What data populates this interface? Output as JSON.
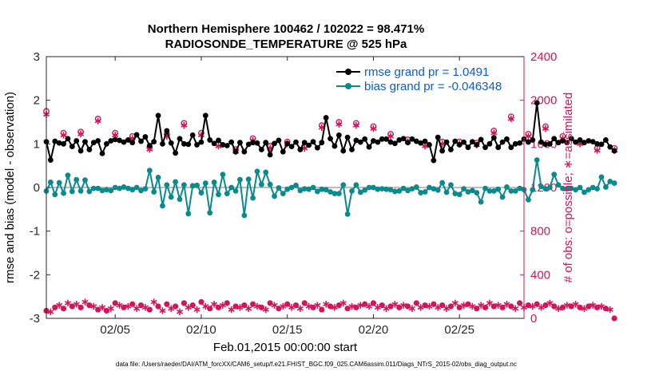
{
  "chart_data": {
    "type": "line",
    "title_line1": "Northern Hemisphere 100462 / 102022 = 98.471%",
    "title_line2": "RADIOSONDE_TEMPERATURE @ 525 hPa",
    "xlabel": "Feb.01,2015 00:00:00 start",
    "ylabel_left": "rmse and bias (model - observation)",
    "ylabel_right": "# of obs: o=possible; ∗=assimilated",
    "footer": "data file: /Users/raeder/DAI/ATM_forcXX/CAM6_setup/f.e21.FHIST_BGC.f09_025.CAM6assim.011/Diags_NTrS_2015-02/obs_diag_output.nc",
    "xlim": [
      1,
      28.75
    ],
    "ylim_left": [
      -3,
      3
    ],
    "ylim_right": [
      0,
      2400
    ],
    "x_tick_values": [
      5,
      10,
      15,
      20,
      25
    ],
    "x_tick_labels": [
      "02/05",
      "02/10",
      "02/15",
      "02/20",
      "02/25"
    ],
    "left_ticks": [
      -3,
      -2,
      -1,
      0,
      1,
      2,
      3
    ],
    "left_tick_labels": [
      "-3",
      "-2",
      "-1",
      "0",
      "1",
      "2",
      "3"
    ],
    "right_ticks": [
      0,
      400,
      800,
      1200,
      1600,
      2000,
      2400
    ],
    "right_tick_labels": [
      "0",
      "400",
      "800",
      "1200",
      "1600",
      "2000",
      "2400"
    ],
    "zero_line": 0,
    "x_start": 1,
    "x_step": 0.25,
    "colors": {
      "rmse": "#000000",
      "bias": "#0a8a8a",
      "obs": "#d4145a",
      "right_axis": "#d4145a",
      "zero": "#bdbdbd",
      "legend_text": "#0b5bd3"
    },
    "legend": [
      {
        "name": "rmse",
        "label": "rmse grand pr = 1.0491"
      },
      {
        "name": "bias",
        "label": "bias grand pr = -0.046348"
      }
    ],
    "series": [
      {
        "name": "rmse",
        "values": [
          1.05,
          0.63,
          1.06,
          1.02,
          1.0,
          1.12,
          0.94,
          1.07,
          0.84,
          1.05,
          0.87,
          1.03,
          1.07,
          0.78,
          1.0,
          1.07,
          1.1,
          1.08,
          1.04,
          1.09,
          1.03,
          1.21,
          1.06,
          1.16,
          0.96,
          1.05,
          1.65,
          1.0,
          1.3,
          1.02,
          0.79,
          1.12,
          1.0,
          0.99,
          1.2,
          0.98,
          1.04,
          1.65,
          1.09,
          1.01,
          1.08,
          0.98,
          0.96,
          1.04,
          0.82,
          1.03,
          0.82,
          0.99,
          1.03,
          1.02,
          0.87,
          1.03,
          0.75,
          1.01,
          1.08,
          0.82,
          1.01,
          0.94,
          1.04,
          0.87,
          1.03,
          0.97,
          1.05,
          0.91,
          1.03,
          1.6,
          1.12,
          0.95,
          1.2,
          0.84,
          1.15,
          0.87,
          1.08,
          1.04,
          1.11,
          0.93,
          1.07,
          1.04,
          1.11,
          1.11,
          1.04,
          1.01,
          1.09,
          1.12,
          1.03,
          1.11,
          1.06,
          1.02,
          1.06,
          0.98,
          0.62,
          1.15,
          0.84,
          1.04,
          0.87,
          1.06,
          0.98,
          1.04,
          0.92,
          1.05,
          0.98,
          1.1,
          0.92,
          1.0,
          1.14,
          0.92,
          1.04,
          1.11,
          0.92,
          1.0,
          1.02,
          1.11,
          1.04,
          1.09,
          1.94,
          1.04,
          0.99,
          1.0,
          1.12,
          1.03,
          1.07,
          1.03,
          1.12,
          1.04,
          1.09,
          1.03,
          1.07,
          1.05,
          1.0,
          0.99,
          1.09,
          0.93,
          0.84
        ]
      },
      {
        "name": "bias",
        "values": [
          -0.08,
          0.12,
          -0.16,
          0.11,
          -0.13,
          0.28,
          -0.09,
          0.18,
          -0.08,
          0.17,
          -0.09,
          -0.02,
          -0.02,
          -0.07,
          -0.05,
          -0.07,
          0.0,
          -0.02,
          0.01,
          -0.02,
          -0.05,
          0.0,
          -0.07,
          -0.03,
          0.39,
          -0.1,
          0.23,
          -0.42,
          0.06,
          -0.22,
          0.13,
          -0.27,
          0.06,
          -0.6,
          0.04,
          0.05,
          -0.12,
          0.1,
          -0.58,
          0.12,
          -0.16,
          0.3,
          -0.14,
          0.0,
          -0.08,
          0.18,
          -0.64,
          0.19,
          -0.24,
          0.37,
          0.07,
          0.35,
          0.07,
          -0.2,
          -0.01,
          -0.14,
          -0.04,
          0.0,
          0.05,
          -0.07,
          -0.03,
          -0.04,
          0.0,
          -0.09,
          -0.04,
          -0.05,
          -0.1,
          -0.14,
          -0.14,
          0.06,
          -0.61,
          -0.08,
          0.06,
          -0.11,
          -0.06,
          0.0,
          0.0,
          -0.04,
          -0.03,
          -0.04,
          -0.05,
          -0.09,
          -0.08,
          -0.02,
          -0.07,
          -0.03,
          0.01,
          -0.12,
          -0.1,
          0.0,
          -0.03,
          -0.06,
          0.11,
          -0.11,
          0.06,
          -0.14,
          -0.16,
          -0.03,
          -0.1,
          -0.07,
          -0.12,
          -0.33,
          -0.02,
          -0.08,
          -0.08,
          -0.04,
          -0.22,
          0.01,
          -0.08,
          -0.08,
          -0.02,
          -0.05,
          -0.28,
          -0.05,
          0.63,
          0.02,
          -0.03,
          0.0,
          0.3,
          0.06,
          -0.02,
          -0.03,
          -0.02,
          -0.05,
          0.0,
          -0.11,
          -0.05,
          0.0,
          -0.03,
          0.24,
          0.01,
          0.14,
          0.1
        ]
      },
      {
        "name": "obs_possible",
        "values": [
          1900,
          170,
          1680,
          1620,
          1700,
          1580,
          1660,
          1620,
          1710,
          1630,
          1650,
          1610,
          1830,
          1820,
          1660,
          1640,
          1700,
          1750,
          1600,
          1740,
          1670,
          1760,
          1790,
          1710,
          1570,
          1750,
          1780,
          1520,
          1690,
          1540,
          1650,
          1620,
          1790,
          1740,
          1800,
          1660,
          1700,
          1820,
          1670,
          1800,
          1600,
          1720,
          1610,
          1690,
          1550,
          1690,
          1610,
          1580,
          1650,
          1700,
          1640,
          1750,
          1580,
          1720,
          1600,
          1660,
          1620,
          1680,
          1780,
          1650,
          1580,
          1720,
          1790,
          1620,
          1770,
          1590,
          1750,
          1670,
          1800,
          1700,
          1820,
          1660,
          1790,
          1720,
          1640,
          1670,
          1760,
          1720,
          1580,
          1730,
          1690,
          1600,
          1680,
          1630,
          1640,
          1560,
          1690,
          1740,
          1600,
          1710,
          1640,
          1700,
          1620,
          1720,
          1680,
          1650,
          1620,
          1830,
          1650,
          1770,
          1610,
          1790,
          1680,
          1800,
          1720,
          1640,
          1690,
          1580,
          1850,
          1650,
          1630,
          1780,
          1690,
          1700,
          1660,
          1710,
          1760,
          1650,
          1740,
          1660,
          1670,
          1620,
          1680,
          1690,
          1620,
          1710,
          1600,
          1650,
          1560,
          1640,
          1680,
          1530,
          1560
        ]
      },
      {
        "name": "obs_assimilated",
        "values": [
          1870,
          150,
          1660,
          1600,
          1680,
          1560,
          1640,
          1600,
          1690,
          1610,
          1630,
          1590,
          1810,
          1800,
          1640,
          1620,
          1680,
          1730,
          1580,
          1720,
          1650,
          1740,
          1770,
          1690,
          1550,
          1730,
          1760,
          1500,
          1670,
          1520,
          1630,
          1600,
          1770,
          1720,
          1780,
          1640,
          1680,
          1800,
          1650,
          1780,
          1580,
          1700,
          1590,
          1670,
          1530,
          1670,
          1590,
          1560,
          1630,
          1680,
          1620,
          1730,
          1560,
          1700,
          1580,
          1640,
          1600,
          1660,
          1760,
          1630,
          1560,
          1700,
          1770,
          1600,
          1750,
          1570,
          1730,
          1650,
          1780,
          1680,
          1800,
          1640,
          1770,
          1700,
          1620,
          1650,
          1740,
          1700,
          1560,
          1710,
          1670,
          1580,
          1660,
          1610,
          1620,
          1540,
          1670,
          1720,
          1580,
          1690,
          1620,
          1680,
          1600,
          1700,
          1660,
          1630,
          1600,
          1810,
          1630,
          1750,
          1590,
          1770,
          1660,
          1780,
          1700,
          1620,
          1670,
          1560,
          1830,
          1630,
          1610,
          1760,
          1670,
          1680,
          1640,
          1690,
          1740,
          1630,
          1720,
          1640,
          1650,
          1600,
          1660,
          1670,
          1600,
          1690,
          1580,
          1630,
          1540,
          1620,
          1660,
          1510,
          1540
        ]
      },
      {
        "name": "obs_low_possible",
        "values": [
          70,
          60,
          100,
          120,
          90,
          140,
          110,
          130,
          100,
          150,
          120,
          110,
          80,
          100,
          70,
          90,
          140,
          120,
          100,
          110,
          130,
          90,
          120,
          100,
          80,
          150,
          110,
          70,
          130,
          90,
          110,
          60,
          140,
          100,
          120,
          80,
          150,
          110,
          90,
          130,
          100,
          120,
          140,
          80,
          110,
          100,
          120,
          90,
          130,
          110,
          100,
          80,
          140,
          120,
          90,
          110,
          130,
          100,
          120,
          90,
          140,
          110,
          100,
          120,
          80,
          130,
          110,
          100,
          120,
          140,
          90,
          110,
          100,
          120,
          130,
          110,
          140,
          100,
          120,
          90,
          110,
          130,
          100,
          120,
          110,
          90,
          140,
          100,
          120,
          110,
          130,
          100,
          120,
          90,
          110,
          140,
          100,
          120,
          130,
          110,
          90,
          120,
          100,
          140,
          110,
          120,
          100,
          130,
          110,
          90,
          140,
          100,
          120,
          110,
          130,
          100,
          120,
          140,
          110,
          90,
          100,
          120,
          110,
          130,
          100,
          90,
          110,
          120,
          100,
          110,
          90,
          80,
          0
        ]
      }
    ]
  }
}
